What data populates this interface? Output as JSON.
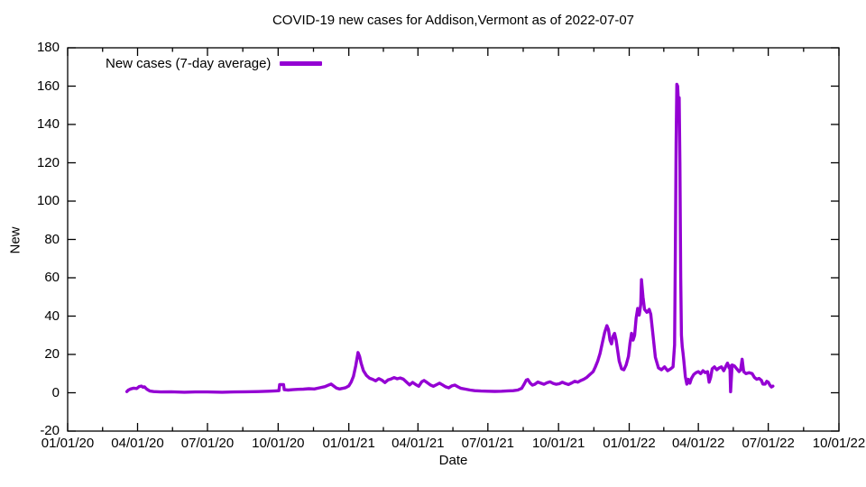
{
  "title": "COVID-19 new cases for Addison,Vermont as of 2022-07-07",
  "legend": {
    "label": "New cases (7-day average)"
  },
  "axes": {
    "xlabel": "Date",
    "ylabel": "New",
    "xtick_labels": [
      "01/01/20",
      "04/01/20",
      "07/01/20",
      "10/01/20",
      "01/01/21",
      "04/01/21",
      "07/01/21",
      "10/01/21",
      "01/01/22",
      "04/01/22",
      "07/01/22",
      "10/01/22"
    ],
    "ytick_labels": [
      "-20",
      "0",
      "20",
      "40",
      "60",
      "80",
      "100",
      "120",
      "140",
      "160",
      "180"
    ]
  },
  "colors": {
    "line": "#9400d3",
    "axis": "#000000",
    "background": "#ffffff"
  },
  "chart_data": {
    "type": "line",
    "title": "COVID-19 new cases for Addison,Vermont as of 2022-07-07",
    "xlabel": "Date",
    "ylabel": "New",
    "xlim": [
      "2020-01-01",
      "2022-10-01"
    ],
    "ylim": [
      -20,
      180
    ],
    "yticks": [
      -20,
      0,
      20,
      40,
      60,
      80,
      100,
      120,
      140,
      160,
      180
    ],
    "xticks": [
      {
        "label": "01/01/20",
        "date": "2020-01-01"
      },
      {
        "label": "04/01/20",
        "date": "2020-04-01"
      },
      {
        "label": "07/01/20",
        "date": "2020-07-01"
      },
      {
        "label": "10/01/20",
        "date": "2020-10-01"
      },
      {
        "label": "01/01/21",
        "date": "2021-01-01"
      },
      {
        "label": "04/01/21",
        "date": "2021-04-01"
      },
      {
        "label": "07/01/21",
        "date": "2021-07-01"
      },
      {
        "label": "10/01/21",
        "date": "2021-10-01"
      },
      {
        "label": "01/01/22",
        "date": "2022-01-01"
      },
      {
        "label": "04/01/22",
        "date": "2022-04-01"
      },
      {
        "label": "07/01/22",
        "date": "2022-07-01"
      },
      {
        "label": "10/01/22",
        "date": "2022-10-01"
      }
    ],
    "grid": false,
    "legend_position": "top-left-inside",
    "series": [
      {
        "name": "New cases (7-day average)",
        "color": "#9400d3",
        "points": [
          [
            "2020-03-18",
            0.6
          ],
          [
            "2020-03-20",
            1.4
          ],
          [
            "2020-03-23",
            2.0
          ],
          [
            "2020-03-27",
            2.4
          ],
          [
            "2020-03-31",
            2.2
          ],
          [
            "2020-04-03",
            3.2
          ],
          [
            "2020-04-06",
            3.5
          ],
          [
            "2020-04-08",
            2.9
          ],
          [
            "2020-04-10",
            3.1
          ],
          [
            "2020-04-13",
            1.9
          ],
          [
            "2020-04-17",
            0.9
          ],
          [
            "2020-04-22",
            0.6
          ],
          [
            "2020-05-01",
            0.4
          ],
          [
            "2020-05-15",
            0.5
          ],
          [
            "2020-06-01",
            0.3
          ],
          [
            "2020-06-15",
            0.4
          ],
          [
            "2020-07-01",
            0.4
          ],
          [
            "2020-07-20",
            0.3
          ],
          [
            "2020-08-05",
            0.4
          ],
          [
            "2020-08-20",
            0.5
          ],
          [
            "2020-09-05",
            0.6
          ],
          [
            "2020-09-18",
            0.8
          ],
          [
            "2020-09-28",
            1.0
          ],
          [
            "2020-10-02",
            1.1
          ],
          [
            "2020-10-03",
            4.3
          ],
          [
            "2020-10-08",
            4.3
          ],
          [
            "2020-10-09",
            1.6
          ],
          [
            "2020-10-14",
            1.4
          ],
          [
            "2020-10-20",
            1.6
          ],
          [
            "2020-10-27",
            1.8
          ],
          [
            "2020-11-03",
            1.9
          ],
          [
            "2020-11-10",
            2.1
          ],
          [
            "2020-11-17",
            2.0
          ],
          [
            "2020-11-24",
            2.6
          ],
          [
            "2020-12-01",
            3.2
          ],
          [
            "2020-12-05",
            3.9
          ],
          [
            "2020-12-09",
            4.5
          ],
          [
            "2020-12-12",
            3.6
          ],
          [
            "2020-12-16",
            2.4
          ],
          [
            "2020-12-20",
            2.0
          ],
          [
            "2020-12-24",
            2.3
          ],
          [
            "2020-12-28",
            2.7
          ],
          [
            "2021-01-01",
            3.6
          ],
          [
            "2021-01-04",
            5.5
          ],
          [
            "2021-01-07",
            8.5
          ],
          [
            "2021-01-10",
            14.0
          ],
          [
            "2021-01-13",
            21.0
          ],
          [
            "2021-01-15",
            19.0
          ],
          [
            "2021-01-17",
            15.5
          ],
          [
            "2021-01-20",
            11.5
          ],
          [
            "2021-01-24",
            9.0
          ],
          [
            "2021-01-28",
            7.6
          ],
          [
            "2021-02-01",
            7.0
          ],
          [
            "2021-02-05",
            6.2
          ],
          [
            "2021-02-09",
            7.4
          ],
          [
            "2021-02-13",
            6.6
          ],
          [
            "2021-02-17",
            5.3
          ],
          [
            "2021-02-21",
            6.7
          ],
          [
            "2021-02-25",
            7.2
          ],
          [
            "2021-03-01",
            7.9
          ],
          [
            "2021-03-05",
            7.3
          ],
          [
            "2021-03-09",
            7.7
          ],
          [
            "2021-03-13",
            7.1
          ],
          [
            "2021-03-17",
            5.6
          ],
          [
            "2021-03-21",
            4.1
          ],
          [
            "2021-03-25",
            5.4
          ],
          [
            "2021-03-29",
            4.3
          ],
          [
            "2021-04-02",
            3.4
          ],
          [
            "2021-04-06",
            5.8
          ],
          [
            "2021-04-09",
            6.4
          ],
          [
            "2021-04-13",
            5.3
          ],
          [
            "2021-04-17",
            4.1
          ],
          [
            "2021-04-21",
            3.4
          ],
          [
            "2021-04-25",
            4.2
          ],
          [
            "2021-04-29",
            5.0
          ],
          [
            "2021-05-03",
            4.1
          ],
          [
            "2021-05-07",
            3.1
          ],
          [
            "2021-05-11",
            2.6
          ],
          [
            "2021-05-15",
            3.6
          ],
          [
            "2021-05-19",
            4.0
          ],
          [
            "2021-05-23",
            3.1
          ],
          [
            "2021-05-27",
            2.3
          ],
          [
            "2021-06-02",
            1.9
          ],
          [
            "2021-06-08",
            1.4
          ],
          [
            "2021-06-14",
            1.1
          ],
          [
            "2021-06-22",
            0.9
          ],
          [
            "2021-07-01",
            0.8
          ],
          [
            "2021-07-10",
            0.7
          ],
          [
            "2021-07-19",
            0.8
          ],
          [
            "2021-07-27",
            1.0
          ],
          [
            "2021-08-03",
            1.1
          ],
          [
            "2021-08-09",
            1.4
          ],
          [
            "2021-08-14",
            2.3
          ],
          [
            "2021-08-17",
            4.3
          ],
          [
            "2021-08-20",
            6.6
          ],
          [
            "2021-08-22",
            6.9
          ],
          [
            "2021-08-25",
            5.1
          ],
          [
            "2021-08-28",
            4.0
          ],
          [
            "2021-08-31",
            4.4
          ],
          [
            "2021-09-04",
            5.6
          ],
          [
            "2021-09-08",
            5.0
          ],
          [
            "2021-09-12",
            4.4
          ],
          [
            "2021-09-16",
            5.2
          ],
          [
            "2021-09-20",
            5.7
          ],
          [
            "2021-09-24",
            4.9
          ],
          [
            "2021-09-28",
            4.4
          ],
          [
            "2021-10-02",
            4.7
          ],
          [
            "2021-10-06",
            5.5
          ],
          [
            "2021-10-10",
            4.8
          ],
          [
            "2021-10-14",
            4.3
          ],
          [
            "2021-10-18",
            5.1
          ],
          [
            "2021-10-22",
            6.0
          ],
          [
            "2021-10-26",
            5.5
          ],
          [
            "2021-10-30",
            6.4
          ],
          [
            "2021-11-03",
            7.1
          ],
          [
            "2021-11-07",
            8.1
          ],
          [
            "2021-11-11",
            9.6
          ],
          [
            "2021-11-15",
            11.0
          ],
          [
            "2021-11-18",
            13.5
          ],
          [
            "2021-11-21",
            16.5
          ],
          [
            "2021-11-24",
            20.5
          ],
          [
            "2021-11-27",
            26.0
          ],
          [
            "2021-11-30",
            31.5
          ],
          [
            "2021-12-03",
            35.0
          ],
          [
            "2021-12-05",
            33.0
          ],
          [
            "2021-12-07",
            27.5
          ],
          [
            "2021-12-09",
            25.5
          ],
          [
            "2021-12-11",
            29.5
          ],
          [
            "2021-12-13",
            31.0
          ],
          [
            "2021-12-15",
            27.5
          ],
          [
            "2021-12-17",
            22.0
          ],
          [
            "2021-12-19",
            16.5
          ],
          [
            "2021-12-22",
            12.5
          ],
          [
            "2021-12-25",
            12.0
          ],
          [
            "2021-12-28",
            14.5
          ],
          [
            "2021-12-31",
            19.0
          ],
          [
            "2022-01-02",
            26.0
          ],
          [
            "2022-01-04",
            31.0
          ],
          [
            "2022-01-06",
            27.5
          ],
          [
            "2022-01-08",
            30.0
          ],
          [
            "2022-01-10",
            39.0
          ],
          [
            "2022-01-12",
            44.0
          ],
          [
            "2022-01-14",
            40.5
          ],
          [
            "2022-01-16",
            46.0
          ],
          [
            "2022-01-17",
            59.0
          ],
          [
            "2022-01-19",
            50.0
          ],
          [
            "2022-01-21",
            43.5
          ],
          [
            "2022-01-24",
            42.0
          ],
          [
            "2022-01-27",
            43.5
          ],
          [
            "2022-01-29",
            41.0
          ],
          [
            "2022-02-01",
            30.0
          ],
          [
            "2022-02-04",
            18.5
          ],
          [
            "2022-02-08",
            13.0
          ],
          [
            "2022-02-12",
            12.0
          ],
          [
            "2022-02-16",
            13.5
          ],
          [
            "2022-02-20",
            11.5
          ],
          [
            "2022-02-24",
            12.5
          ],
          [
            "2022-02-27",
            13.5
          ],
          [
            "2022-03-01",
            25.0
          ],
          [
            "2022-03-02",
            70.0
          ],
          [
            "2022-03-03",
            130.0
          ],
          [
            "2022-03-04",
            161.0
          ],
          [
            "2022-03-05",
            160.0
          ],
          [
            "2022-03-06",
            152.0
          ],
          [
            "2022-03-07",
            154.0
          ],
          [
            "2022-03-08",
            120.0
          ],
          [
            "2022-03-09",
            60.0
          ],
          [
            "2022-03-10",
            30.0
          ],
          [
            "2022-03-11",
            24.0
          ],
          [
            "2022-03-12",
            21.0
          ],
          [
            "2022-03-13",
            17.0
          ],
          [
            "2022-03-15",
            8.5
          ],
          [
            "2022-03-17",
            4.5
          ],
          [
            "2022-03-19",
            7.0
          ],
          [
            "2022-03-21",
            5.0
          ],
          [
            "2022-03-23",
            7.5
          ],
          [
            "2022-03-26",
            9.5
          ],
          [
            "2022-03-29",
            10.5
          ],
          [
            "2022-04-01",
            11.0
          ],
          [
            "2022-04-04",
            10.0
          ],
          [
            "2022-04-07",
            11.5
          ],
          [
            "2022-04-10",
            10.5
          ],
          [
            "2022-04-13",
            11.0
          ],
          [
            "2022-04-15",
            5.5
          ],
          [
            "2022-04-17",
            8.0
          ],
          [
            "2022-04-19",
            12.5
          ],
          [
            "2022-04-22",
            13.5
          ],
          [
            "2022-04-25",
            12.0
          ],
          [
            "2022-04-28",
            13.0
          ],
          [
            "2022-05-01",
            13.5
          ],
          [
            "2022-05-04",
            11.5
          ],
          [
            "2022-05-07",
            14.0
          ],
          [
            "2022-05-09",
            15.5
          ],
          [
            "2022-05-11",
            13.0
          ],
          [
            "2022-05-12",
            14.0
          ],
          [
            "2022-05-13",
            0.5
          ],
          [
            "2022-05-15",
            14.5
          ],
          [
            "2022-05-18",
            14.0
          ],
          [
            "2022-05-21",
            12.5
          ],
          [
            "2022-05-24",
            11.0
          ],
          [
            "2022-05-26",
            12.0
          ],
          [
            "2022-05-28",
            17.5
          ],
          [
            "2022-05-30",
            11.0
          ],
          [
            "2022-06-02",
            10.0
          ],
          [
            "2022-06-06",
            10.5
          ],
          [
            "2022-06-10",
            10.0
          ],
          [
            "2022-06-13",
            8.0
          ],
          [
            "2022-06-16",
            7.0
          ],
          [
            "2022-06-19",
            7.5
          ],
          [
            "2022-06-22",
            6.5
          ],
          [
            "2022-06-24",
            4.5
          ],
          [
            "2022-06-27",
            4.5
          ],
          [
            "2022-06-29",
            6.0
          ],
          [
            "2022-07-01",
            5.5
          ],
          [
            "2022-07-03",
            4.0
          ],
          [
            "2022-07-05",
            3.0
          ],
          [
            "2022-07-07",
            3.5
          ]
        ]
      }
    ]
  }
}
